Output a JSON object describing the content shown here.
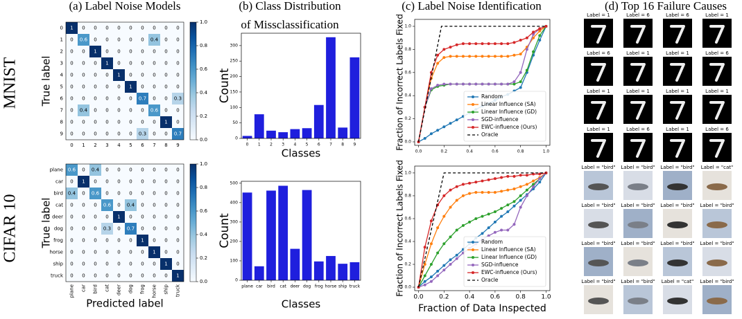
{
  "column_titles": [
    [
      "(a) Label Noise Models"
    ],
    [
      "(b) Class Distribution",
      "of Missclassification"
    ],
    [
      "(c) Label Noise Identification"
    ],
    [
      "(d) Top 16 Failure Causes"
    ]
  ],
  "row_labels": [
    "MNIST",
    "CIFAR 10"
  ],
  "chart_data": [
    {
      "type": "heatmap",
      "categories": [
        "0",
        "1",
        "2",
        "3",
        "4",
        "5",
        "6",
        "7",
        "8",
        "9"
      ],
      "matrix": [
        [
          1,
          0,
          0,
          0,
          0,
          0,
          0,
          0,
          0,
          0
        ],
        [
          0,
          0.6,
          0,
          0,
          0,
          0,
          0,
          0.4,
          0,
          0
        ],
        [
          0,
          0,
          1,
          0,
          0,
          0,
          0,
          0,
          0,
          0
        ],
        [
          0,
          0,
          0,
          1,
          0,
          0,
          0,
          0,
          0,
          0
        ],
        [
          0,
          0,
          0,
          0,
          1,
          0,
          0,
          0,
          0,
          0
        ],
        [
          0,
          0,
          0,
          0,
          0,
          1,
          0,
          0,
          0,
          0
        ],
        [
          0,
          0,
          0,
          0,
          0,
          0,
          0.7,
          0,
          0,
          0.3
        ],
        [
          0,
          0.4,
          0,
          0,
          0,
          0,
          0,
          0.6,
          0,
          0
        ],
        [
          0,
          0,
          0,
          0,
          0,
          0,
          0,
          0,
          1,
          0
        ],
        [
          0,
          0,
          0,
          0,
          0,
          0,
          0.3,
          0,
          0,
          0.7
        ]
      ],
      "ylabel": "True label",
      "cmap": [
        "#f7fbff",
        "#deebf7",
        "#c6dbef",
        "#9ecae1",
        "#6baed6",
        "#4292c6",
        "#2171b5",
        "#08519c",
        "#08306b"
      ],
      "clim": [
        0,
        1
      ],
      "cticks": [
        {
          "value": 0,
          "label": "0.0"
        },
        0.2,
        0.4,
        0.6,
        0.8,
        {
          "value": 1,
          "label": "1.0"
        }
      ]
    },
    {
      "type": "bar",
      "categories": [
        "0",
        "1",
        "2",
        "3",
        "4",
        "5",
        "6",
        "7",
        "8",
        "9"
      ],
      "values": [
        8,
        78,
        25,
        20,
        30,
        33,
        108,
        327,
        35,
        262
      ],
      "color": "#1f1fdd",
      "ylim": [
        0,
        340
      ],
      "yticks": [
        0,
        50,
        100,
        150,
        200,
        250,
        300
      ],
      "ylabel": "Count",
      "xlabel": "Classes"
    },
    {
      "type": "line",
      "ylabel": "Fraction of Incorrect Labels Fixed",
      "x": [
        0,
        0.05,
        0.1,
        0.15,
        0.2,
        0.25,
        0.3,
        0.35,
        0.4,
        0.45,
        0.5,
        0.55,
        0.6,
        0.65,
        0.7,
        0.75,
        0.8,
        0.85,
        0.9,
        0.95,
        1
      ],
      "series": [
        {
          "name": "Random",
          "color": "#1f77b4",
          "values": [
            0,
            0.03,
            0.07,
            0.1,
            0.13,
            0.16,
            0.19,
            0.22,
            0.25,
            0.28,
            0.31,
            0.33,
            0.36,
            0.39,
            0.41,
            0.44,
            0.47,
            0.6,
            0.75,
            0.88,
            1
          ]
        },
        {
          "name": "Linear Influence (SA)",
          "color": "#ff7f0e",
          "values": [
            0,
            0.3,
            0.55,
            0.68,
            0.73,
            0.74,
            0.74,
            0.74,
            0.74,
            0.74,
            0.74,
            0.74,
            0.74,
            0.74,
            0.74,
            0.75,
            0.76,
            0.82,
            0.9,
            0.96,
            1
          ]
        },
        {
          "name": "Linear Influence (GD)",
          "color": "#2ca02c",
          "values": [
            0,
            0.3,
            0.45,
            0.48,
            0.49,
            0.5,
            0.5,
            0.5,
            0.5,
            0.5,
            0.5,
            0.5,
            0.5,
            0.5,
            0.5,
            0.5,
            0.52,
            0.62,
            0.78,
            0.92,
            1
          ]
        },
        {
          "name": "SGD-influence",
          "color": "#9467bd",
          "values": [
            0,
            0.3,
            0.46,
            0.49,
            0.5,
            0.5,
            0.5,
            0.5,
            0.5,
            0.5,
            0.5,
            0.5,
            0.5,
            0.5,
            0.5,
            0.52,
            0.6,
            0.8,
            0.93,
            0.98,
            1
          ]
        },
        {
          "name": "EWC-influence (Ours)",
          "color": "#d62728",
          "values": [
            0,
            0.3,
            0.6,
            0.75,
            0.8,
            0.82,
            0.84,
            0.85,
            0.85,
            0.85,
            0.85,
            0.85,
            0.85,
            0.85,
            0.85,
            0.86,
            0.88,
            0.9,
            0.95,
            0.98,
            1
          ]
        },
        {
          "name": "Oracle",
          "color": "#000000",
          "x": [
            0,
            0.18,
            1
          ],
          "values": [
            0,
            1,
            1
          ],
          "dash": "4 3"
        }
      ],
      "xlim": [
        -0.03,
        1.03
      ],
      "ylim": [
        -0.03,
        1.06
      ],
      "xticks": [
        {
          "value": 0,
          "label": "0.0"
        },
        0.2,
        0.4,
        0.6,
        0.8,
        {
          "value": 1,
          "label": "1.0"
        }
      ],
      "yticks": [
        {
          "value": 0,
          "label": "0.0"
        },
        0.2,
        0.4,
        0.6,
        0.8,
        {
          "value": 1,
          "label": "1.0"
        }
      ],
      "legend": "lower right"
    },
    {
      "type": "heatmap",
      "categories": [
        "plane",
        "car",
        "bird",
        "cat",
        "deer",
        "dog",
        "frog",
        "horse",
        "ship",
        "truck"
      ],
      "matrix": [
        [
          0.6,
          0,
          0.4,
          0,
          0,
          0,
          0,
          0,
          0,
          0
        ],
        [
          0,
          1,
          0,
          0,
          0,
          0,
          0,
          0,
          0,
          0
        ],
        [
          0.4,
          0,
          0.6,
          0,
          0,
          0,
          0,
          0,
          0,
          0
        ],
        [
          0,
          0,
          0,
          0.6,
          0,
          0.4,
          0,
          0,
          0,
          0
        ],
        [
          0,
          0,
          0,
          0,
          1,
          0,
          0,
          0,
          0,
          0
        ],
        [
          0,
          0,
          0,
          0.3,
          0,
          0.7,
          0,
          0,
          0,
          0
        ],
        [
          0,
          0,
          0,
          0,
          0,
          0,
          1,
          0,
          0,
          0
        ],
        [
          0,
          0,
          0,
          0,
          0,
          0,
          0,
          1,
          0,
          0
        ],
        [
          0,
          0,
          0,
          0,
          0,
          0,
          0,
          0,
          1,
          0
        ],
        [
          0,
          0,
          0,
          0,
          0,
          0,
          0,
          0,
          0,
          1
        ]
      ],
      "ylabel": "True label",
      "xlabel": "Predicted label",
      "xtick_rotation": 90,
      "cmap": [
        "#f7fbff",
        "#deebf7",
        "#c6dbef",
        "#9ecae1",
        "#6baed6",
        "#4292c6",
        "#2171b5",
        "#08519c",
        "#08306b"
      ],
      "clim": [
        0,
        1
      ],
      "cticks": [
        {
          "value": 0,
          "label": "0.0"
        },
        0.2,
        0.4,
        0.6,
        0.8,
        {
          "value": 1,
          "label": "1.0"
        }
      ]
    },
    {
      "type": "bar",
      "categories": [
        "plane",
        "car",
        "bird",
        "cat",
        "deer",
        "dog",
        "frog",
        "horse",
        "ship",
        "truck"
      ],
      "values": [
        452,
        72,
        462,
        487,
        162,
        465,
        97,
        125,
        85,
        93
      ],
      "color": "#1f1fdd",
      "ylim": [
        0,
        510
      ],
      "yticks": [
        0,
        100,
        200,
        300,
        400,
        500
      ],
      "ylabel": "Count",
      "xlabel": "Classes"
    },
    {
      "type": "line",
      "ylabel": "Fraction of Incorrect Labels Fixed",
      "xlabel": "Fraction of Data Inspected",
      "x": [
        0,
        0.05,
        0.1,
        0.15,
        0.2,
        0.25,
        0.3,
        0.35,
        0.4,
        0.45,
        0.5,
        0.55,
        0.6,
        0.65,
        0.7,
        0.75,
        0.8,
        0.85,
        0.9,
        0.95,
        1
      ],
      "series": [
        {
          "name": "Random",
          "color": "#1f77b4",
          "values": [
            0,
            0.05,
            0.09,
            0.14,
            0.19,
            0.24,
            0.28,
            0.33,
            0.38,
            0.43,
            0.47,
            0.52,
            0.57,
            0.62,
            0.66,
            0.71,
            0.76,
            0.81,
            0.86,
            0.92,
            1
          ]
        },
        {
          "name": "Linear Influence (SA)",
          "color": "#ff7f0e",
          "values": [
            0,
            0.2,
            0.38,
            0.52,
            0.62,
            0.7,
            0.76,
            0.8,
            0.82,
            0.83,
            0.83,
            0.83,
            0.83,
            0.84,
            0.85,
            0.86,
            0.88,
            0.9,
            0.93,
            0.96,
            1
          ]
        },
        {
          "name": "Linear Influence (GD)",
          "color": "#2ca02c",
          "values": [
            0,
            0.1,
            0.2,
            0.3,
            0.38,
            0.44,
            0.5,
            0.54,
            0.57,
            0.6,
            0.62,
            0.64,
            0.66,
            0.69,
            0.72,
            0.75,
            0.8,
            0.85,
            0.9,
            0.95,
            1
          ]
        },
        {
          "name": "SGD-influence",
          "color": "#9467bd",
          "values": [
            0,
            0.02,
            0.05,
            0.1,
            0.15,
            0.2,
            0.25,
            0.3,
            0.34,
            0.38,
            0.42,
            0.45,
            0.48,
            0.5,
            0.5,
            0.55,
            0.7,
            0.8,
            0.88,
            0.95,
            1
          ]
        },
        {
          "name": "EWC-influence (Ours)",
          "color": "#d62728",
          "values": [
            0,
            0.35,
            0.58,
            0.72,
            0.8,
            0.85,
            0.88,
            0.9,
            0.91,
            0.92,
            0.93,
            0.94,
            0.95,
            0.96,
            0.97,
            0.97,
            0.98,
            0.98,
            0.99,
            0.99,
            1
          ]
        },
        {
          "name": "Oracle",
          "color": "#000000",
          "x": [
            0,
            0.2,
            1
          ],
          "values": [
            0,
            1,
            1
          ],
          "dash": "4 3"
        }
      ],
      "xlim": [
        -0.03,
        1.03
      ],
      "ylim": [
        -0.03,
        1.06
      ],
      "xticks": [
        {
          "value": 0,
          "label": "0.0"
        },
        0.2,
        0.4,
        0.6,
        0.8,
        {
          "value": 1,
          "label": "1.0"
        }
      ],
      "yticks": [
        {
          "value": 0,
          "label": "0.0"
        },
        0.2,
        0.4,
        0.6,
        0.8,
        {
          "value": 1,
          "label": "1.0"
        }
      ],
      "legend": "lower right"
    }
  ],
  "failure_grids": [
    {
      "kind": "digit",
      "labels": [
        "Label = 1",
        "Label = 6",
        "Label = 6",
        "Label = 1",
        "Label = 6",
        "Label = 1",
        "Label = 1",
        "Label = 6",
        "Label = 1",
        "Label = 1",
        "Label = 1",
        "Label = 1",
        "Label = 1",
        "Label = 6",
        "Label = 1",
        "Label = 6"
      ]
    },
    {
      "kind": "photo",
      "labels": [
        "Label = \"bird\"",
        "Label = \"bird\"",
        "Label = \"bird\"",
        "Label = \"cat\"",
        "Label = \"bird\"",
        "Label = \"bird\"",
        "Label = \"bird\"",
        "Label = \"bird\"",
        "Label = \"bird\"",
        "Label = \"bird\"",
        "Label = \"bird\"",
        "Label = \"bird\"",
        "Label = \"bird\"",
        "Label = \"bird\"",
        "Label = \"cat\"",
        "Label = \"bird\""
      ]
    }
  ]
}
